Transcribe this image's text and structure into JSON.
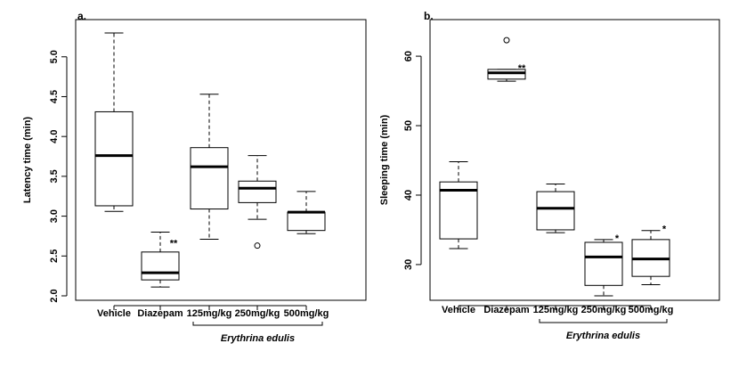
{
  "chart_data": [
    {
      "type": "boxplot",
      "panel": "a.",
      "ylabel": "Latency time (min)",
      "ylim": [
        2.0,
        5.4
      ],
      "yticks": [
        2.0,
        2.5,
        3.0,
        3.5,
        4.0,
        4.5,
        5.0
      ],
      "ytick_labels": [
        "2.0",
        "2.5",
        "3.0",
        "3.5",
        "4.0",
        "4.5",
        "5.0"
      ],
      "categories": [
        "Vehicle",
        "Diazepam",
        "125mg/kg",
        "250mg/kg",
        "500mg/kg"
      ],
      "group_label": "Erythrina edulis",
      "group_span": [
        2,
        4
      ],
      "boxes": [
        {
          "category": "Vehicle",
          "whisker_low": 3.06,
          "q1": 3.13,
          "median": 3.76,
          "q3": 4.31,
          "whisker_high": 5.3,
          "outliers": [],
          "significance": ""
        },
        {
          "category": "Diazepam",
          "whisker_low": 2.11,
          "q1": 2.2,
          "median": 2.29,
          "q3": 2.55,
          "whisker_high": 2.8,
          "outliers": [],
          "significance": "**"
        },
        {
          "category": "125mg/kg",
          "whisker_low": 2.71,
          "q1": 3.09,
          "median": 3.62,
          "q3": 3.86,
          "whisker_high": 4.53,
          "outliers": [],
          "significance": ""
        },
        {
          "category": "250mg/kg",
          "whisker_low": 2.96,
          "q1": 3.17,
          "median": 3.35,
          "q3": 3.44,
          "whisker_high": 3.76,
          "outliers": [
            2.63
          ],
          "significance": ""
        },
        {
          "category": "500mg/kg",
          "whisker_low": 2.78,
          "q1": 2.82,
          "median": 3.05,
          "q3": 3.05,
          "whisker_high": 3.31,
          "outliers": [],
          "significance": ""
        }
      ]
    },
    {
      "type": "boxplot",
      "panel": "b.",
      "ylabel": "Sleeping time (min)",
      "ylim": [
        25.5,
        64.5
      ],
      "yticks": [
        30,
        40,
        50,
        60
      ],
      "ytick_labels": [
        "30",
        "40",
        "50",
        "60"
      ],
      "categories": [
        "Vehicle",
        "Diazepam",
        "125mg/kg",
        "250mg/kg",
        "500mg/kg"
      ],
      "group_label": "Erythrina edulis",
      "group_span": [
        2,
        4
      ],
      "boxes": [
        {
          "category": "Vehicle",
          "whisker_low": 32.3,
          "q1": 33.7,
          "median": 40.7,
          "q3": 41.9,
          "whisker_high": 44.8,
          "outliers": [],
          "significance": ""
        },
        {
          "category": "Diazepam",
          "whisker_low": 56.4,
          "q1": 56.7,
          "median": 57.6,
          "q3": 58.1,
          "whisker_high": 58.1,
          "outliers": [
            62.3
          ],
          "significance": "**"
        },
        {
          "category": "125mg/kg",
          "whisker_low": 34.6,
          "q1": 35.0,
          "median": 38.1,
          "q3": 40.5,
          "whisker_high": 41.6,
          "outliers": [],
          "significance": ""
        },
        {
          "category": "250mg/kg",
          "whisker_low": 25.5,
          "q1": 27.0,
          "median": 31.1,
          "q3": 33.2,
          "whisker_high": 33.6,
          "outliers": [],
          "significance": "*"
        },
        {
          "category": "500mg/kg",
          "whisker_low": 27.1,
          "q1": 28.3,
          "median": 30.8,
          "q3": 33.6,
          "whisker_high": 34.9,
          "outliers": [],
          "significance": "*"
        }
      ]
    }
  ]
}
